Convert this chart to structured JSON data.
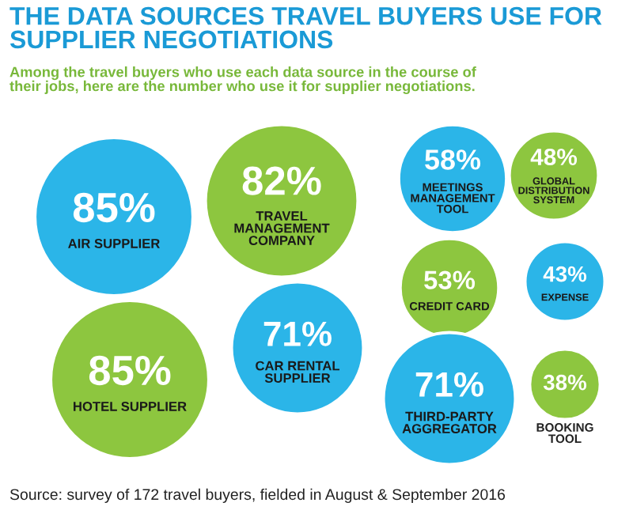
{
  "chart_data": {
    "type": "other",
    "title": "THE DATA SOURCES TRAVEL BUYERS USE FOR\nSUPPLIER NEGOTIATIONS",
    "subtitle": "Among the travel buyers who use each data source in the course of\ntheir jobs, here are the number who use it for supplier negotiations.",
    "categories": [
      "AIR SUPPLIER",
      "HOTEL SUPPLIER",
      "TRAVEL\nMANAGEMENT\nCOMPANY",
      "CAR RENTAL\nSUPPLIER",
      "MEETINGS\nMANAGEMENT\nTOOL",
      "GLOBAL\nDISTRIBUTION\nSYSTEM",
      "CREDIT CARD",
      "EXPENSE",
      "THIRD-PARTY\nAGGREGATOR",
      "BOOKING\nTOOL"
    ],
    "values": [
      85,
      85,
      82,
      71,
      58,
      48,
      53,
      43,
      71,
      38
    ],
    "value_labels": [
      "85%",
      "85%",
      "82%",
      "71%",
      "58%",
      "48%",
      "53%",
      "43%",
      "71%",
      "38%"
    ],
    "colors": [
      "#2bb5e8",
      "#8dc63f",
      "#8dc63f",
      "#2bb5e8",
      "#2bb5e8",
      "#8dc63f",
      "#8dc63f",
      "#2bb5e8",
      "#2bb5e8",
      "#8dc63f"
    ],
    "annotations": [
      "Source: survey of 172 travel buyers, fielded in August & September 2016"
    ]
  }
}
